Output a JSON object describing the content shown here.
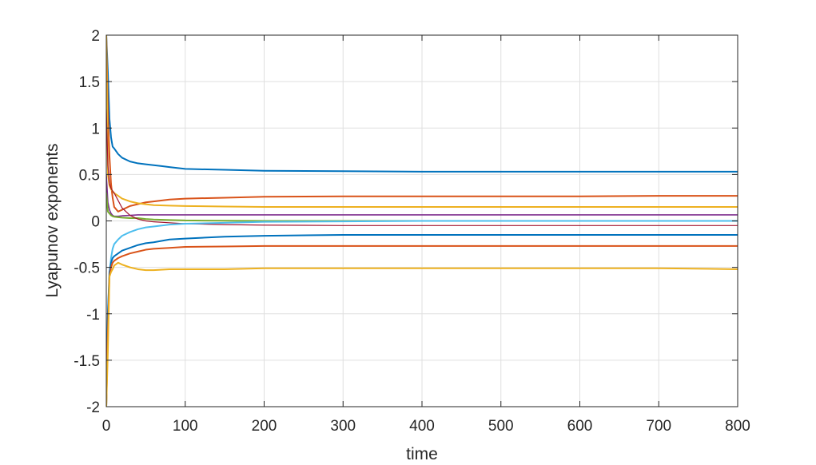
{
  "chart_data": {
    "type": "line",
    "title": "",
    "xlabel": "time",
    "ylabel": "Lyapunov exponents",
    "xlim": [
      0,
      800
    ],
    "ylim": [
      -2,
      2
    ],
    "xticks": [
      0,
      100,
      200,
      300,
      400,
      500,
      600,
      700,
      800
    ],
    "xtick_labels": [
      "0",
      "100",
      "200",
      "300",
      "400",
      "500",
      "600",
      "700",
      "800"
    ],
    "yticks": [
      -2,
      -1.5,
      -1,
      -0.5,
      0,
      0.5,
      1,
      1.5,
      2
    ],
    "ytick_labels": [
      "-2",
      "-1.5",
      "-1",
      "-0.5",
      "0",
      "0.5",
      "1",
      "1.5",
      "2"
    ],
    "grid": true,
    "legend": "none",
    "series": [
      {
        "color": "#0072BD",
        "width": 2.0,
        "x": [
          0,
          2,
          4,
          6,
          8,
          10,
          15,
          20,
          30,
          40,
          50,
          60,
          70,
          80,
          100,
          150,
          200,
          300,
          400,
          500,
          600,
          700,
          800
        ],
        "y": [
          2.0,
          1.6,
          1.1,
          0.9,
          0.8,
          0.78,
          0.72,
          0.68,
          0.64,
          0.62,
          0.61,
          0.6,
          0.59,
          0.58,
          0.56,
          0.55,
          0.54,
          0.535,
          0.53,
          0.53,
          0.53,
          0.53,
          0.53
        ]
      },
      {
        "color": "#D95319",
        "width": 2.0,
        "x": [
          0,
          2,
          4,
          6,
          8,
          10,
          15,
          20,
          30,
          40,
          50,
          60,
          80,
          100,
          150,
          200,
          300,
          400,
          500,
          600,
          700,
          800
        ],
        "y": [
          2.0,
          1.2,
          0.7,
          0.4,
          0.25,
          0.15,
          0.1,
          0.12,
          0.16,
          0.18,
          0.2,
          0.21,
          0.23,
          0.24,
          0.25,
          0.26,
          0.265,
          0.265,
          0.265,
          0.265,
          0.27,
          0.27
        ]
      },
      {
        "color": "#EDB120",
        "width": 2.0,
        "x": [
          0,
          2,
          4,
          6,
          8,
          10,
          15,
          20,
          30,
          40,
          50,
          60,
          80,
          100,
          150,
          200,
          300,
          400,
          500,
          600,
          700,
          800
        ],
        "y": [
          2.0,
          0.5,
          0.38,
          0.34,
          0.32,
          0.3,
          0.27,
          0.24,
          0.21,
          0.19,
          0.18,
          0.17,
          0.165,
          0.16,
          0.155,
          0.15,
          0.15,
          0.15,
          0.15,
          0.15,
          0.15,
          0.15
        ]
      },
      {
        "color": "#7E2F8E",
        "width": 1.6,
        "x": [
          0,
          2,
          4,
          6,
          8,
          10,
          15,
          20,
          30,
          40,
          50,
          60,
          80,
          100,
          150,
          200,
          300,
          400,
          500,
          600,
          700,
          800
        ],
        "y": [
          0.5,
          0.2,
          0.12,
          0.08,
          0.06,
          0.05,
          0.05,
          0.055,
          0.06,
          0.065,
          0.065,
          0.065,
          0.065,
          0.065,
          0.065,
          0.065,
          0.065,
          0.065,
          0.065,
          0.065,
          0.065,
          0.065
        ]
      },
      {
        "color": "#77AC30",
        "width": 2.0,
        "x": [
          0,
          2,
          4,
          6,
          8,
          10,
          15,
          20,
          30,
          40,
          50,
          60,
          80,
          100,
          150,
          200,
          300,
          400,
          500,
          600,
          700,
          800
        ],
        "y": [
          0.3,
          0.1,
          0.08,
          0.06,
          0.05,
          0.045,
          0.04,
          0.035,
          0.03,
          0.03,
          0.02,
          0.015,
          0.01,
          0.005,
          0.002,
          0.0,
          0.0,
          0.0,
          0.0,
          0.0,
          0.0,
          0.0
        ]
      },
      {
        "color": "#A2142F",
        "width": 1.2,
        "x": [
          0,
          2,
          4,
          6,
          8,
          10,
          15,
          20,
          30,
          40,
          50,
          60,
          80,
          100,
          150,
          200,
          300,
          400,
          500,
          600,
          700,
          800
        ],
        "y": [
          1.2,
          0.6,
          0.4,
          0.35,
          0.32,
          0.3,
          0.22,
          0.14,
          0.06,
          0.02,
          0.0,
          -0.01,
          -0.02,
          -0.03,
          -0.04,
          -0.045,
          -0.05,
          -0.05,
          -0.05,
          -0.05,
          -0.05,
          -0.05
        ]
      },
      {
        "color": "#4DBEEE",
        "width": 2.0,
        "x": [
          0,
          2,
          4,
          6,
          8,
          10,
          15,
          20,
          30,
          40,
          50,
          60,
          80,
          100,
          150,
          200,
          300,
          400,
          500,
          600,
          700,
          800
        ],
        "y": [
          -2.0,
          -1.0,
          -0.6,
          -0.4,
          -0.3,
          -0.25,
          -0.2,
          -0.16,
          -0.12,
          -0.09,
          -0.07,
          -0.06,
          -0.04,
          -0.03,
          -0.02,
          -0.01,
          -0.005,
          0.0,
          0.0,
          0.0,
          0.0,
          0.0
        ]
      },
      {
        "color": "#0072BD",
        "width": 2.0,
        "x": [
          0,
          2,
          4,
          6,
          8,
          10,
          15,
          20,
          30,
          40,
          50,
          60,
          80,
          100,
          150,
          200,
          300,
          400,
          500,
          600,
          700,
          800
        ],
        "y": [
          -2.0,
          -1.0,
          -0.55,
          -0.45,
          -0.4,
          -0.38,
          -0.35,
          -0.32,
          -0.29,
          -0.26,
          -0.24,
          -0.23,
          -0.2,
          -0.19,
          -0.17,
          -0.16,
          -0.15,
          -0.15,
          -0.15,
          -0.15,
          -0.15,
          -0.15
        ]
      },
      {
        "color": "#D95319",
        "width": 2.0,
        "x": [
          0,
          2,
          4,
          6,
          8,
          10,
          15,
          20,
          30,
          40,
          50,
          60,
          80,
          100,
          150,
          200,
          300,
          400,
          500,
          600,
          700,
          800
        ],
        "y": [
          -2.0,
          -1.2,
          -0.6,
          -0.5,
          -0.45,
          -0.43,
          -0.4,
          -0.38,
          -0.35,
          -0.33,
          -0.31,
          -0.3,
          -0.29,
          -0.28,
          -0.275,
          -0.27,
          -0.27,
          -0.27,
          -0.27,
          -0.27,
          -0.27,
          -0.27
        ]
      },
      {
        "color": "#EDB120",
        "width": 2.0,
        "x": [
          0,
          2,
          4,
          6,
          8,
          10,
          15,
          20,
          30,
          40,
          50,
          60,
          80,
          100,
          150,
          200,
          300,
          400,
          500,
          600,
          700,
          800
        ],
        "y": [
          -2.0,
          -1.4,
          -0.6,
          -0.55,
          -0.52,
          -0.48,
          -0.45,
          -0.47,
          -0.5,
          -0.52,
          -0.53,
          -0.53,
          -0.52,
          -0.52,
          -0.52,
          -0.51,
          -0.51,
          -0.51,
          -0.51,
          -0.51,
          -0.51,
          -0.52
        ]
      }
    ]
  }
}
